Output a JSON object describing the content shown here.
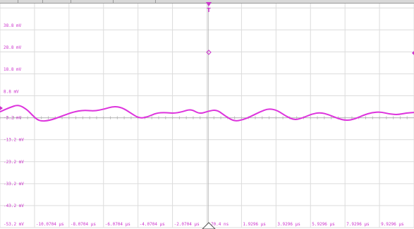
{
  "top_toolbar": {
    "segments": [
      "",
      "",
      "",
      "",
      ""
    ]
  },
  "trigger": {
    "marker_label": "T"
  },
  "y_axis": {
    "tick_labels": [
      "38.8 mV",
      "28.8 mV",
      "18.8 mV",
      "8.8 mV",
      "-3.2 mV",
      "-13.2 mV",
      "-23.2 mV",
      "-33.2 mV",
      "-43.2 mV",
      "-53.2 mV"
    ]
  },
  "x_axis": {
    "tick_labels": [
      "-10.0704 µs",
      "-8.0704 µs",
      "-6.0704 µs",
      "-4.0704 µs",
      "-2.0704 µs",
      "70.4 ns",
      "1.9296 µs",
      "3.9296 µs",
      "5.9296 µs",
      "7.9296 µs",
      "9.9296 µs"
    ]
  },
  "colors": {
    "trace": "#dd33dd",
    "grid": "#dcdcdc",
    "labels": "#cc33cc",
    "background": "#ffffff"
  },
  "chart_data": {
    "type": "line",
    "xlabel": "",
    "ylabel": "",
    "xlim": [
      -12.0704,
      11.9296
    ],
    "ylim": [
      -53.2,
      48.8
    ],
    "series": [
      {
        "x": [
          -12.07,
          -11.5,
          -11.0,
          -10.5,
          -10.2,
          -9.8,
          -9.2,
          -8.5,
          -7.8,
          -7.2,
          -6.6,
          -6.0,
          -5.5,
          -5.0,
          -4.5,
          -4.0,
          -3.5,
          -3.0,
          -2.5,
          -2.0,
          -1.5,
          -1.0,
          -0.5,
          0.0,
          0.5,
          1.0,
          1.5,
          2.0,
          2.5,
          3.0,
          3.5,
          4.0,
          4.5,
          5.0,
          5.5,
          6.0,
          6.5,
          7.0,
          7.5,
          8.0,
          8.5,
          9.0,
          9.5,
          10.0,
          10.5,
          11.0,
          11.5,
          11.93
        ],
        "values": [
          -0.5,
          1.5,
          2.8,
          0.5,
          -2.0,
          -4.8,
          -4.5,
          -2.5,
          -0.5,
          0.3,
          -0.2,
          0.8,
          2.0,
          1.5,
          -1.0,
          -3.5,
          -2.8,
          -1.0,
          -0.8,
          -1.2,
          -0.5,
          0.8,
          -1.5,
          -0.2,
          0.5,
          -2.5,
          -4.8,
          -4.2,
          -2.5,
          -0.5,
          1.0,
          0.2,
          -2.5,
          -4.3,
          -3.2,
          -1.5,
          -0.8,
          -1.8,
          -3.5,
          -4.5,
          -3.8,
          -2.0,
          -0.8,
          -0.5,
          -1.5,
          -1.8,
          -1.0,
          -0.8
        ]
      }
    ]
  }
}
